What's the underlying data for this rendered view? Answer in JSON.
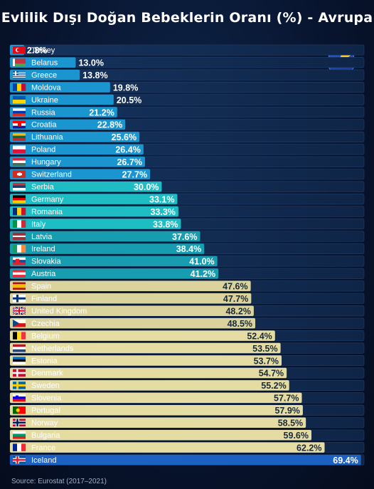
{
  "chart_data": {
    "type": "bar",
    "orientation": "horizontal",
    "title": "Evlilik Dışı Doğan Bebeklerin Oranı (%) - Avrupa",
    "source": "Source: Eurostat (2017–2021)",
    "value_suffix": "%",
    "categories": [
      "Turkey",
      "Belarus",
      "Greece",
      "Moldova",
      "Ukraine",
      "Russia",
      "Croatia",
      "Lithuania",
      "Poland",
      "Hungary",
      "Switzerland",
      "Serbia",
      "Germany",
      "Romania",
      "Italy",
      "Latvia",
      "Ireland",
      "Slovakia",
      "Austria",
      "Spain",
      "Finland",
      "United Kingdom",
      "Czechia",
      "Belgium",
      "Netherlands",
      "Estonia",
      "Denmark",
      "Sweden",
      "Slovenia",
      "Portugal",
      "Norway",
      "Bulgaria",
      "France",
      "Iceland"
    ],
    "values": [
      2.8,
      13.0,
      13.8,
      19.8,
      20.5,
      21.2,
      22.8,
      25.6,
      26.4,
      26.7,
      27.7,
      30.0,
      33.1,
      33.3,
      33.8,
      37.6,
      38.4,
      41.0,
      41.2,
      47.6,
      47.7,
      48.2,
      48.5,
      52.4,
      53.5,
      53.7,
      54.7,
      55.2,
      57.7,
      57.9,
      58.5,
      59.6,
      62.2,
      69.4
    ],
    "xlim": [
      0,
      70
    ],
    "grid": false,
    "legend": "none",
    "colors": {
      "low": "#1b9bd6",
      "mid": "#1fc4c9",
      "teal": "#17a3b4",
      "high": "#f0e6a6",
      "top": "#1e64c8"
    }
  },
  "flags": {
    "Turkey": "tr",
    "Belarus": "by",
    "Greece": "gr",
    "Moldova": "md",
    "Ukraine": "ua",
    "Russia": "ru",
    "Croatia": "hr",
    "Lithuania": "lt",
    "Poland": "pl",
    "Hungary": "hu",
    "Switzerland": "ch",
    "Serbia": "rs",
    "Germany": "de",
    "Romania": "ro",
    "Italy": "it",
    "Latvia": "lv",
    "Ireland": "ie",
    "Slovakia": "sk",
    "Austria": "at",
    "Spain": "es",
    "Finland": "fi",
    "United Kingdom": "gb",
    "Czechia": "cz",
    "Belgium": "be",
    "Netherlands": "nl",
    "Estonia": "ee",
    "Denmark": "dk",
    "Sweden": "se",
    "Slovenia": "si",
    "Portugal": "pt",
    "Norway": "no",
    "Bulgaria": "bg",
    "France": "fr",
    "Iceland": "is"
  }
}
